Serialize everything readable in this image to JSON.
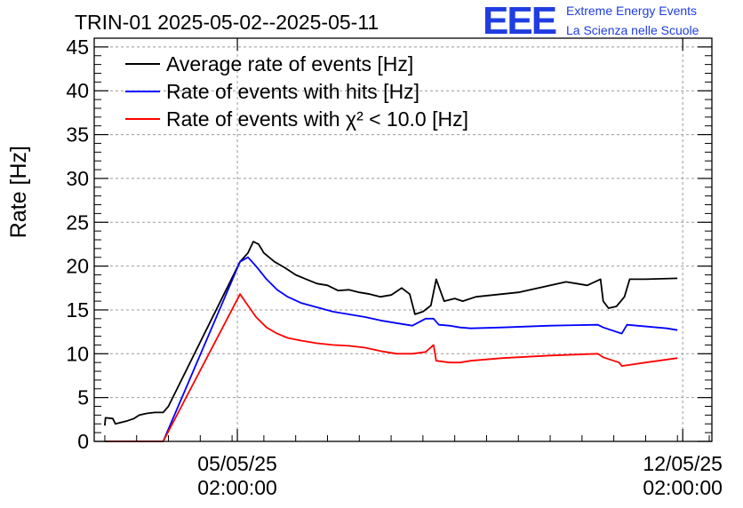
{
  "header": {
    "logo_mark": "EEE",
    "logo_line1": "Extreme Energy Events",
    "logo_line2": "La Scienza nelle Scuole"
  },
  "chart_data": {
    "type": "line",
    "title": "TRIN-01 2025-05-02--2025-05-11",
    "ylabel": "Rate [Hz]",
    "xlabel": "",
    "ylim": [
      0,
      46
    ],
    "yticks": [
      0,
      5,
      10,
      15,
      20,
      25,
      30,
      35,
      40,
      45
    ],
    "xlim": [
      "2025-05-02 20:00",
      "2025-05-12 13:00"
    ],
    "xticks": [
      {
        "at": "2025-05-05 02:00",
        "date": "05/05/25",
        "time": "02:00:00"
      },
      {
        "at": "2025-05-12 02:00",
        "date": "12/05/25",
        "time": "02:00:00"
      }
    ],
    "grid": true,
    "legend_position": "top-left",
    "series": [
      {
        "name": "Average rate of events [Hz]",
        "color": "#000000",
        "points": [
          [
            "2025-05-03 00:00",
            1.8
          ],
          [
            "2025-05-03 00:15",
            2.7
          ],
          [
            "2025-05-03 03:00",
            2.6
          ],
          [
            "2025-05-03 04:00",
            2.0
          ],
          [
            "2025-05-03 08:00",
            2.3
          ],
          [
            "2025-05-03 11:00",
            2.6
          ],
          [
            "2025-05-03 13:00",
            3.0
          ],
          [
            "2025-05-03 16:00",
            3.2
          ],
          [
            "2025-05-03 19:00",
            3.3
          ],
          [
            "2025-05-03 22:00",
            3.3
          ],
          [
            "2025-05-04 00:00",
            4.0
          ],
          [
            "2025-05-05 03:00",
            20.5
          ],
          [
            "2025-05-05 06:00",
            21.5
          ],
          [
            "2025-05-05 08:00",
            22.8
          ],
          [
            "2025-05-05 10:00",
            22.5
          ],
          [
            "2025-05-05 12:00",
            21.5
          ],
          [
            "2025-05-05 16:00",
            20.5
          ],
          [
            "2025-05-05 20:00",
            19.8
          ],
          [
            "2025-05-06 00:00",
            19.0
          ],
          [
            "2025-05-06 04:00",
            18.5
          ],
          [
            "2025-05-06 08:00",
            18.0
          ],
          [
            "2025-05-06 12:00",
            17.8
          ],
          [
            "2025-05-06 16:00",
            17.2
          ],
          [
            "2025-05-06 20:00",
            17.3
          ],
          [
            "2025-05-07 00:00",
            17.0
          ],
          [
            "2025-05-07 04:00",
            16.8
          ],
          [
            "2025-05-07 08:00",
            16.5
          ],
          [
            "2025-05-07 12:00",
            16.7
          ],
          [
            "2025-05-07 16:00",
            17.5
          ],
          [
            "2025-05-07 19:00",
            16.8
          ],
          [
            "2025-05-07 21:00",
            14.5
          ],
          [
            "2025-05-08 00:00",
            14.8
          ],
          [
            "2025-05-08 03:00",
            15.5
          ],
          [
            "2025-05-08 05:00",
            18.5
          ],
          [
            "2025-05-08 08:00",
            16.0
          ],
          [
            "2025-05-08 12:00",
            16.3
          ],
          [
            "2025-05-08 15:00",
            16.0
          ],
          [
            "2025-05-08 20:00",
            16.5
          ],
          [
            "2025-05-09 12:00",
            17.0
          ],
          [
            "2025-05-10 06:00",
            18.2
          ],
          [
            "2025-05-10 10:00",
            18.0
          ],
          [
            "2025-05-10 14:00",
            17.8
          ],
          [
            "2025-05-10 19:00",
            18.5
          ],
          [
            "2025-05-10 20:00",
            16.0
          ],
          [
            "2025-05-10 22:00",
            15.2
          ],
          [
            "2025-05-11 01:00",
            15.4
          ],
          [
            "2025-05-11 04:00",
            16.5
          ],
          [
            "2025-05-11 06:00",
            18.5
          ],
          [
            "2025-05-11 12:00",
            18.5
          ],
          [
            "2025-05-12 00:00",
            18.6
          ]
        ]
      },
      {
        "name": "Rate of events with hits [Hz]",
        "color": "#0000ff",
        "points": [
          [
            "2025-05-03 00:00",
            0
          ],
          [
            "2025-05-03 22:00",
            0
          ],
          [
            "2025-05-05 03:00",
            20.5
          ],
          [
            "2025-05-05 06:00",
            21.0
          ],
          [
            "2025-05-05 09:00",
            20.0
          ],
          [
            "2025-05-05 13:00",
            18.5
          ],
          [
            "2025-05-05 17:00",
            17.3
          ],
          [
            "2025-05-05 21:00",
            16.5
          ],
          [
            "2025-05-06 02:00",
            15.8
          ],
          [
            "2025-05-06 08:00",
            15.3
          ],
          [
            "2025-05-06 14:00",
            14.8
          ],
          [
            "2025-05-06 20:00",
            14.5
          ],
          [
            "2025-05-07 02:00",
            14.2
          ],
          [
            "2025-05-07 08:00",
            13.8
          ],
          [
            "2025-05-07 14:00",
            13.5
          ],
          [
            "2025-05-07 20:00",
            13.2
          ],
          [
            "2025-05-08 01:00",
            14.0
          ],
          [
            "2025-05-08 04:00",
            14.0
          ],
          [
            "2025-05-08 06:00",
            13.3
          ],
          [
            "2025-05-08 10:00",
            13.2
          ],
          [
            "2025-05-08 14:00",
            13.0
          ],
          [
            "2025-05-08 18:00",
            12.9
          ],
          [
            "2025-05-09 06:00",
            13.0
          ],
          [
            "2025-05-10 00:00",
            13.2
          ],
          [
            "2025-05-10 18:00",
            13.3
          ],
          [
            "2025-05-10 20:00",
            13.0
          ],
          [
            "2025-05-11 03:00",
            12.3
          ],
          [
            "2025-05-11 05:00",
            13.3
          ],
          [
            "2025-05-11 20:00",
            12.9
          ],
          [
            "2025-05-12 00:00",
            12.7
          ]
        ]
      },
      {
        "name": "Rate of events with χ² < 10.0 [Hz]",
        "color": "#ff0000",
        "points": [
          [
            "2025-05-03 00:00",
            0
          ],
          [
            "2025-05-03 22:00",
            0
          ],
          [
            "2025-05-05 03:00",
            16.8
          ],
          [
            "2025-05-05 06:00",
            15.5
          ],
          [
            "2025-05-05 09:00",
            14.2
          ],
          [
            "2025-05-05 13:00",
            13.0
          ],
          [
            "2025-05-05 17:00",
            12.3
          ],
          [
            "2025-05-05 21:00",
            11.8
          ],
          [
            "2025-05-06 02:00",
            11.5
          ],
          [
            "2025-05-06 08:00",
            11.2
          ],
          [
            "2025-05-06 14:00",
            11.0
          ],
          [
            "2025-05-06 20:00",
            10.9
          ],
          [
            "2025-05-07 02:00",
            10.7
          ],
          [
            "2025-05-07 08:00",
            10.3
          ],
          [
            "2025-05-07 14:00",
            10.0
          ],
          [
            "2025-05-07 20:00",
            10.0
          ],
          [
            "2025-05-08 01:00",
            10.2
          ],
          [
            "2025-05-08 04:00",
            11.0
          ],
          [
            "2025-05-08 05:00",
            9.2
          ],
          [
            "2025-05-08 10:00",
            9.0
          ],
          [
            "2025-05-08 14:00",
            9.0
          ],
          [
            "2025-05-08 18:00",
            9.2
          ],
          [
            "2025-05-09 06:00",
            9.5
          ],
          [
            "2025-05-10 00:00",
            9.8
          ],
          [
            "2025-05-10 18:00",
            10.0
          ],
          [
            "2025-05-10 20:00",
            9.6
          ],
          [
            "2025-05-11 02:00",
            9.0
          ],
          [
            "2025-05-11 03:00",
            8.6
          ],
          [
            "2025-05-11 12:00",
            9.0
          ],
          [
            "2025-05-12 00:00",
            9.5
          ]
        ]
      }
    ]
  }
}
